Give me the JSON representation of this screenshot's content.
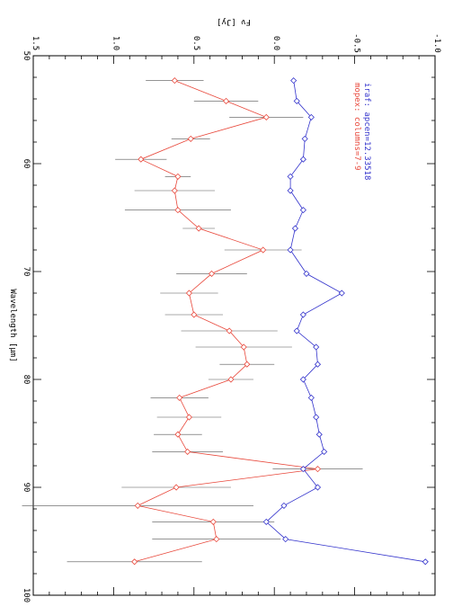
{
  "chart_data": {
    "type": "line",
    "xlabel": "Wavelength [μm]",
    "ylabel": "Fν [Jy]",
    "xlim": [
      50,
      100
    ],
    "ylim": [
      -1.0,
      1.5
    ],
    "x_ticks": [
      "50",
      "60",
      "70",
      "80",
      "90",
      "100"
    ],
    "y_ticks": [
      "-1.0",
      "-0.5",
      "0.0",
      "0.5",
      "1.0",
      "1.5"
    ],
    "legend_placement": "top-right",
    "series": [
      {
        "name": "mopex: columns=7-9",
        "color": "#e8473a",
        "x": [
          52.3,
          54.2,
          55.7,
          57.7,
          59.6,
          61.2,
          62.5,
          64.3,
          66.0,
          68.0,
          70.2,
          72.0,
          74.0,
          75.5,
          77.0,
          78.6,
          80.0,
          81.7,
          83.5,
          85.1,
          86.7,
          88.3,
          90.0,
          91.7,
          93.2,
          94.8,
          96.9
        ],
        "y": [
          0.62,
          0.3,
          0.05,
          0.52,
          0.83,
          0.6,
          0.62,
          0.6,
          0.47,
          0.07,
          0.39,
          0.53,
          0.5,
          0.28,
          0.19,
          0.17,
          0.27,
          0.59,
          0.53,
          0.6,
          0.54,
          -0.27,
          0.61,
          0.85,
          0.38,
          0.36,
          0.87
        ],
        "errors": [
          0.18,
          0.2,
          0.23,
          0.12,
          0.16,
          0.08,
          0.25,
          0.33,
          0.1,
          0.24,
          0.22,
          0.18,
          0.18,
          0.3,
          0.3,
          0.17,
          0.14,
          0.18,
          0.2,
          0.15,
          0.22,
          0.28,
          0.34,
          0.72,
          0.38,
          0.4,
          0.42
        ]
      },
      {
        "name": "iraf: apcen=12.33518",
        "color": "#3333cc",
        "x": [
          52.3,
          54.2,
          55.7,
          57.7,
          59.6,
          61.2,
          62.5,
          64.3,
          66.0,
          68.0,
          70.2,
          72.0,
          74.0,
          75.5,
          77.0,
          78.6,
          80.0,
          81.7,
          83.5,
          85.1,
          86.7,
          88.3,
          90.0,
          91.7,
          93.2,
          94.8,
          96.9
        ],
        "y": [
          -0.12,
          -0.14,
          -0.23,
          -0.19,
          -0.18,
          -0.1,
          -0.1,
          -0.18,
          -0.13,
          -0.1,
          -0.2,
          -0.42,
          -0.18,
          -0.14,
          -0.26,
          -0.27,
          -0.18,
          -0.23,
          -0.26,
          -0.28,
          -0.31,
          -0.18,
          -0.27,
          -0.06,
          0.05,
          -0.07,
          -0.94
        ],
        "errors": []
      }
    ]
  }
}
